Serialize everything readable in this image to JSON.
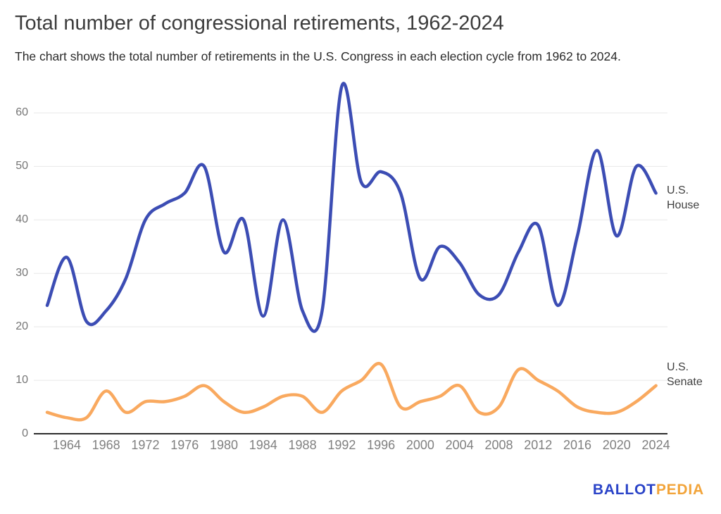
{
  "header": {
    "title": "Total number of congressional retirements, 1962-2024",
    "subtitle": "The chart shows the total number of retirements in the U.S. Congress in each election cycle from 1962 to 2024."
  },
  "chart_data": {
    "type": "line",
    "title": "Total number of congressional retirements, 1962-2024",
    "xlabel": "",
    "ylabel": "",
    "x": [
      1962,
      1964,
      1966,
      1968,
      1970,
      1972,
      1974,
      1976,
      1978,
      1980,
      1982,
      1984,
      1986,
      1988,
      1990,
      1992,
      1994,
      1996,
      1998,
      2000,
      2002,
      2004,
      2006,
      2008,
      2010,
      2012,
      2014,
      2016,
      2018,
      2020,
      2022,
      2024
    ],
    "series": [
      {
        "name": "U.S. House",
        "color": "#3C4DB4",
        "values": [
          24,
          33,
          21,
          23,
          29,
          40,
          43,
          45,
          50,
          34,
          40,
          22,
          40,
          23,
          23,
          65,
          47,
          49,
          45,
          29,
          35,
          32,
          26,
          26,
          34,
          39,
          24,
          37,
          53,
          37,
          50,
          45
        ]
      },
      {
        "name": "U.S. Senate",
        "color": "#F9A95F",
        "values": [
          4,
          3,
          3,
          8,
          4,
          6,
          6,
          7,
          9,
          6,
          4,
          5,
          7,
          7,
          4,
          8,
          10,
          13,
          5,
          6,
          7,
          9,
          4,
          5,
          12,
          10,
          8,
          5,
          4,
          4,
          6,
          9
        ]
      }
    ],
    "y_ticks": [
      0,
      10,
      20,
      30,
      40,
      50,
      60
    ],
    "x_tick_labels": [
      "1964",
      "1968",
      "1972",
      "1976",
      "1980",
      "1984",
      "1988",
      "1992",
      "1996",
      "2000",
      "2004",
      "2008",
      "2012",
      "2016",
      "2020",
      "2024"
    ],
    "ylim": [
      0,
      66
    ],
    "grid": "horizontal",
    "legend": "series labels at right end of lines",
    "curve": "smoothed"
  },
  "colors": {
    "house_line": "#3C4DB4",
    "senate_line": "#F9A95F",
    "gridline": "#e8e8e8",
    "axis_line": "#2d2d2d",
    "tick_label": "#808080",
    "y_label": "#757575"
  },
  "footer": {
    "logo_part1": "BALLOT",
    "logo_part2": "PEDIA"
  }
}
